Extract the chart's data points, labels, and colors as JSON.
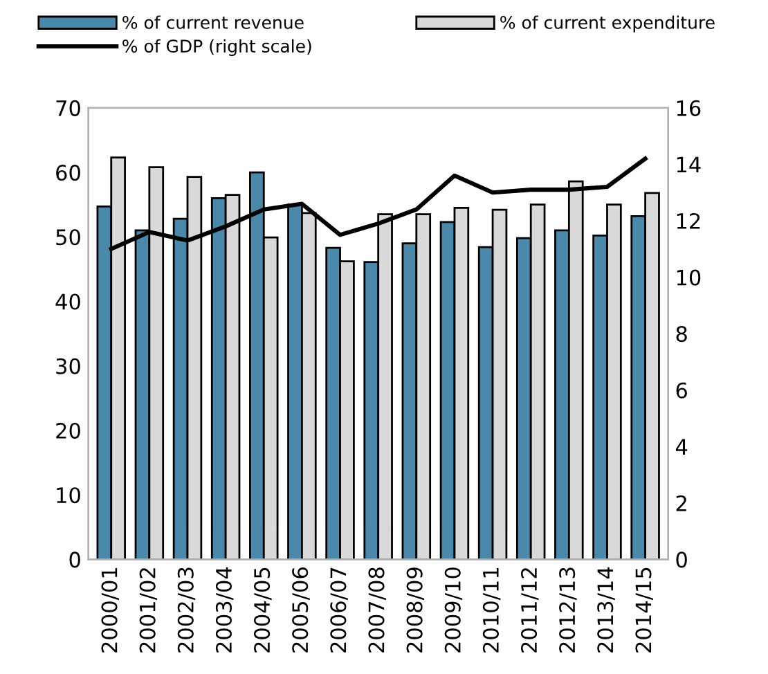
{
  "chart_data": {
    "type": "bar",
    "categories": [
      "2000/01",
      "2001/02",
      "2002/03",
      "2003/04",
      "2004/05",
      "2005/06",
      "2006/07",
      "2007/08",
      "2008/09",
      "2009/10",
      "2010/11",
      "2011/12",
      "2012/13",
      "2013/14",
      "2014/15"
    ],
    "series": [
      {
        "name": "% of current revenue",
        "color": "#4a89aa",
        "values": [
          54.7,
          51,
          52.8,
          56,
          60,
          55,
          48.3,
          46.1,
          49,
          52.3,
          48.4,
          49.8,
          51,
          50.2,
          53.2
        ]
      },
      {
        "name": "% of current expenditure",
        "color": "#d9d9d9",
        "values": [
          62.3,
          60.8,
          59.3,
          56.5,
          49.9,
          53.7,
          46.2,
          53.5,
          53.5,
          54.5,
          54.2,
          55,
          58.6,
          55,
          56.8
        ]
      },
      {
        "name": "% of GDP (right scale)",
        "color": "#000000",
        "type": "line",
        "axis": "y2",
        "values": [
          11.0,
          11.6,
          11.3,
          11.8,
          12.4,
          12.6,
          11.5,
          11.9,
          12.4,
          13.6,
          13.0,
          13.1,
          13.1,
          13.2,
          14.2
        ]
      }
    ],
    "ylim": [
      0,
      70
    ],
    "yticks": [
      0,
      10,
      20,
      30,
      40,
      50,
      60,
      70
    ],
    "y2lim": [
      0,
      16
    ],
    "y2ticks": [
      0,
      2,
      4,
      6,
      8,
      10,
      12,
      14,
      16
    ],
    "grid": false,
    "legend": "top"
  }
}
